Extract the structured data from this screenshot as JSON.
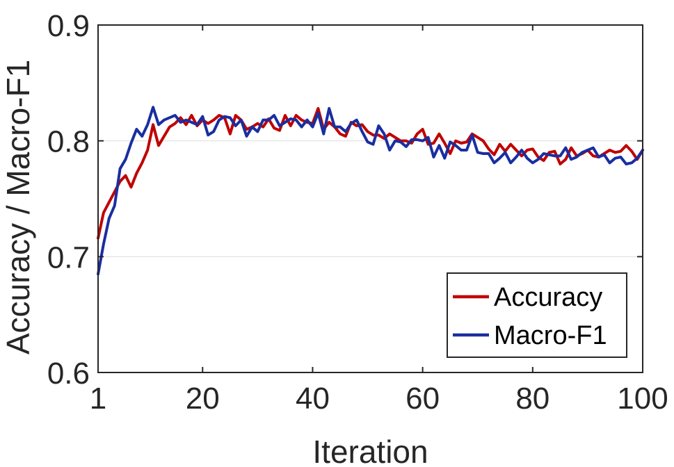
{
  "chart_data": {
    "type": "line",
    "xlabel": "Iteration",
    "ylabel": "Accuracy / Macro-F1",
    "xlim": [
      1,
      100
    ],
    "ylim": [
      0.6,
      0.9
    ],
    "xticks": [
      1,
      20,
      40,
      60,
      80,
      100
    ],
    "xtick_labels": [
      "1",
      "20",
      "40",
      "60",
      "80",
      "100"
    ],
    "yticks": [
      0.6,
      0.7,
      0.8,
      0.9
    ],
    "ytick_labels": [
      "0.6",
      "0.7",
      "0.8",
      "0.9"
    ],
    "grid": "horizontal",
    "legend_position": "bottom-right",
    "series": [
      {
        "name": "Accuracy",
        "color": "#c00000",
        "values": [
          0.716,
          0.738,
          0.747,
          0.756,
          0.765,
          0.77,
          0.76,
          0.772,
          0.781,
          0.792,
          0.814,
          0.796,
          0.804,
          0.812,
          0.815,
          0.82,
          0.814,
          0.822,
          0.813,
          0.818,
          0.815,
          0.818,
          0.822,
          0.82,
          0.806,
          0.822,
          0.818,
          0.81,
          0.812,
          0.815,
          0.812,
          0.819,
          0.811,
          0.809,
          0.822,
          0.813,
          0.822,
          0.818,
          0.816,
          0.815,
          0.828,
          0.81,
          0.816,
          0.812,
          0.806,
          0.804,
          0.816,
          0.813,
          0.814,
          0.808,
          0.805,
          0.805,
          0.802,
          0.806,
          0.803,
          0.8,
          0.8,
          0.798,
          0.806,
          0.81,
          0.797,
          0.798,
          0.806,
          0.798,
          0.789,
          0.8,
          0.798,
          0.799,
          0.806,
          0.803,
          0.8,
          0.793,
          0.788,
          0.797,
          0.791,
          0.797,
          0.792,
          0.787,
          0.792,
          0.793,
          0.786,
          0.783,
          0.79,
          0.791,
          0.78,
          0.784,
          0.794,
          0.787,
          0.789,
          0.792,
          0.787,
          0.786,
          0.789,
          0.792,
          0.79,
          0.791,
          0.796,
          0.791,
          0.784,
          0.792
        ]
      },
      {
        "name": "Macro-F1",
        "color": "#1a2ea0",
        "values": [
          0.685,
          0.711,
          0.733,
          0.744,
          0.776,
          0.784,
          0.798,
          0.81,
          0.804,
          0.814,
          0.829,
          0.814,
          0.818,
          0.82,
          0.822,
          0.816,
          0.818,
          0.816,
          0.814,
          0.821,
          0.805,
          0.808,
          0.818,
          0.821,
          0.82,
          0.813,
          0.818,
          0.804,
          0.812,
          0.808,
          0.818,
          0.818,
          0.822,
          0.813,
          0.816,
          0.819,
          0.818,
          0.812,
          0.818,
          0.812,
          0.824,
          0.806,
          0.828,
          0.812,
          0.812,
          0.808,
          0.815,
          0.818,
          0.808,
          0.799,
          0.797,
          0.813,
          0.806,
          0.792,
          0.8,
          0.799,
          0.795,
          0.801,
          0.801,
          0.8,
          0.803,
          0.786,
          0.796,
          0.785,
          0.799,
          0.796,
          0.792,
          0.792,
          0.805,
          0.79,
          0.789,
          0.789,
          0.781,
          0.785,
          0.79,
          0.781,
          0.786,
          0.792,
          0.785,
          0.781,
          0.784,
          0.789,
          0.788,
          0.787,
          0.787,
          0.794,
          0.784,
          0.786,
          0.79,
          0.792,
          0.794,
          0.786,
          0.788,
          0.781,
          0.785,
          0.786,
          0.78,
          0.781,
          0.785,
          0.792
        ]
      }
    ]
  }
}
